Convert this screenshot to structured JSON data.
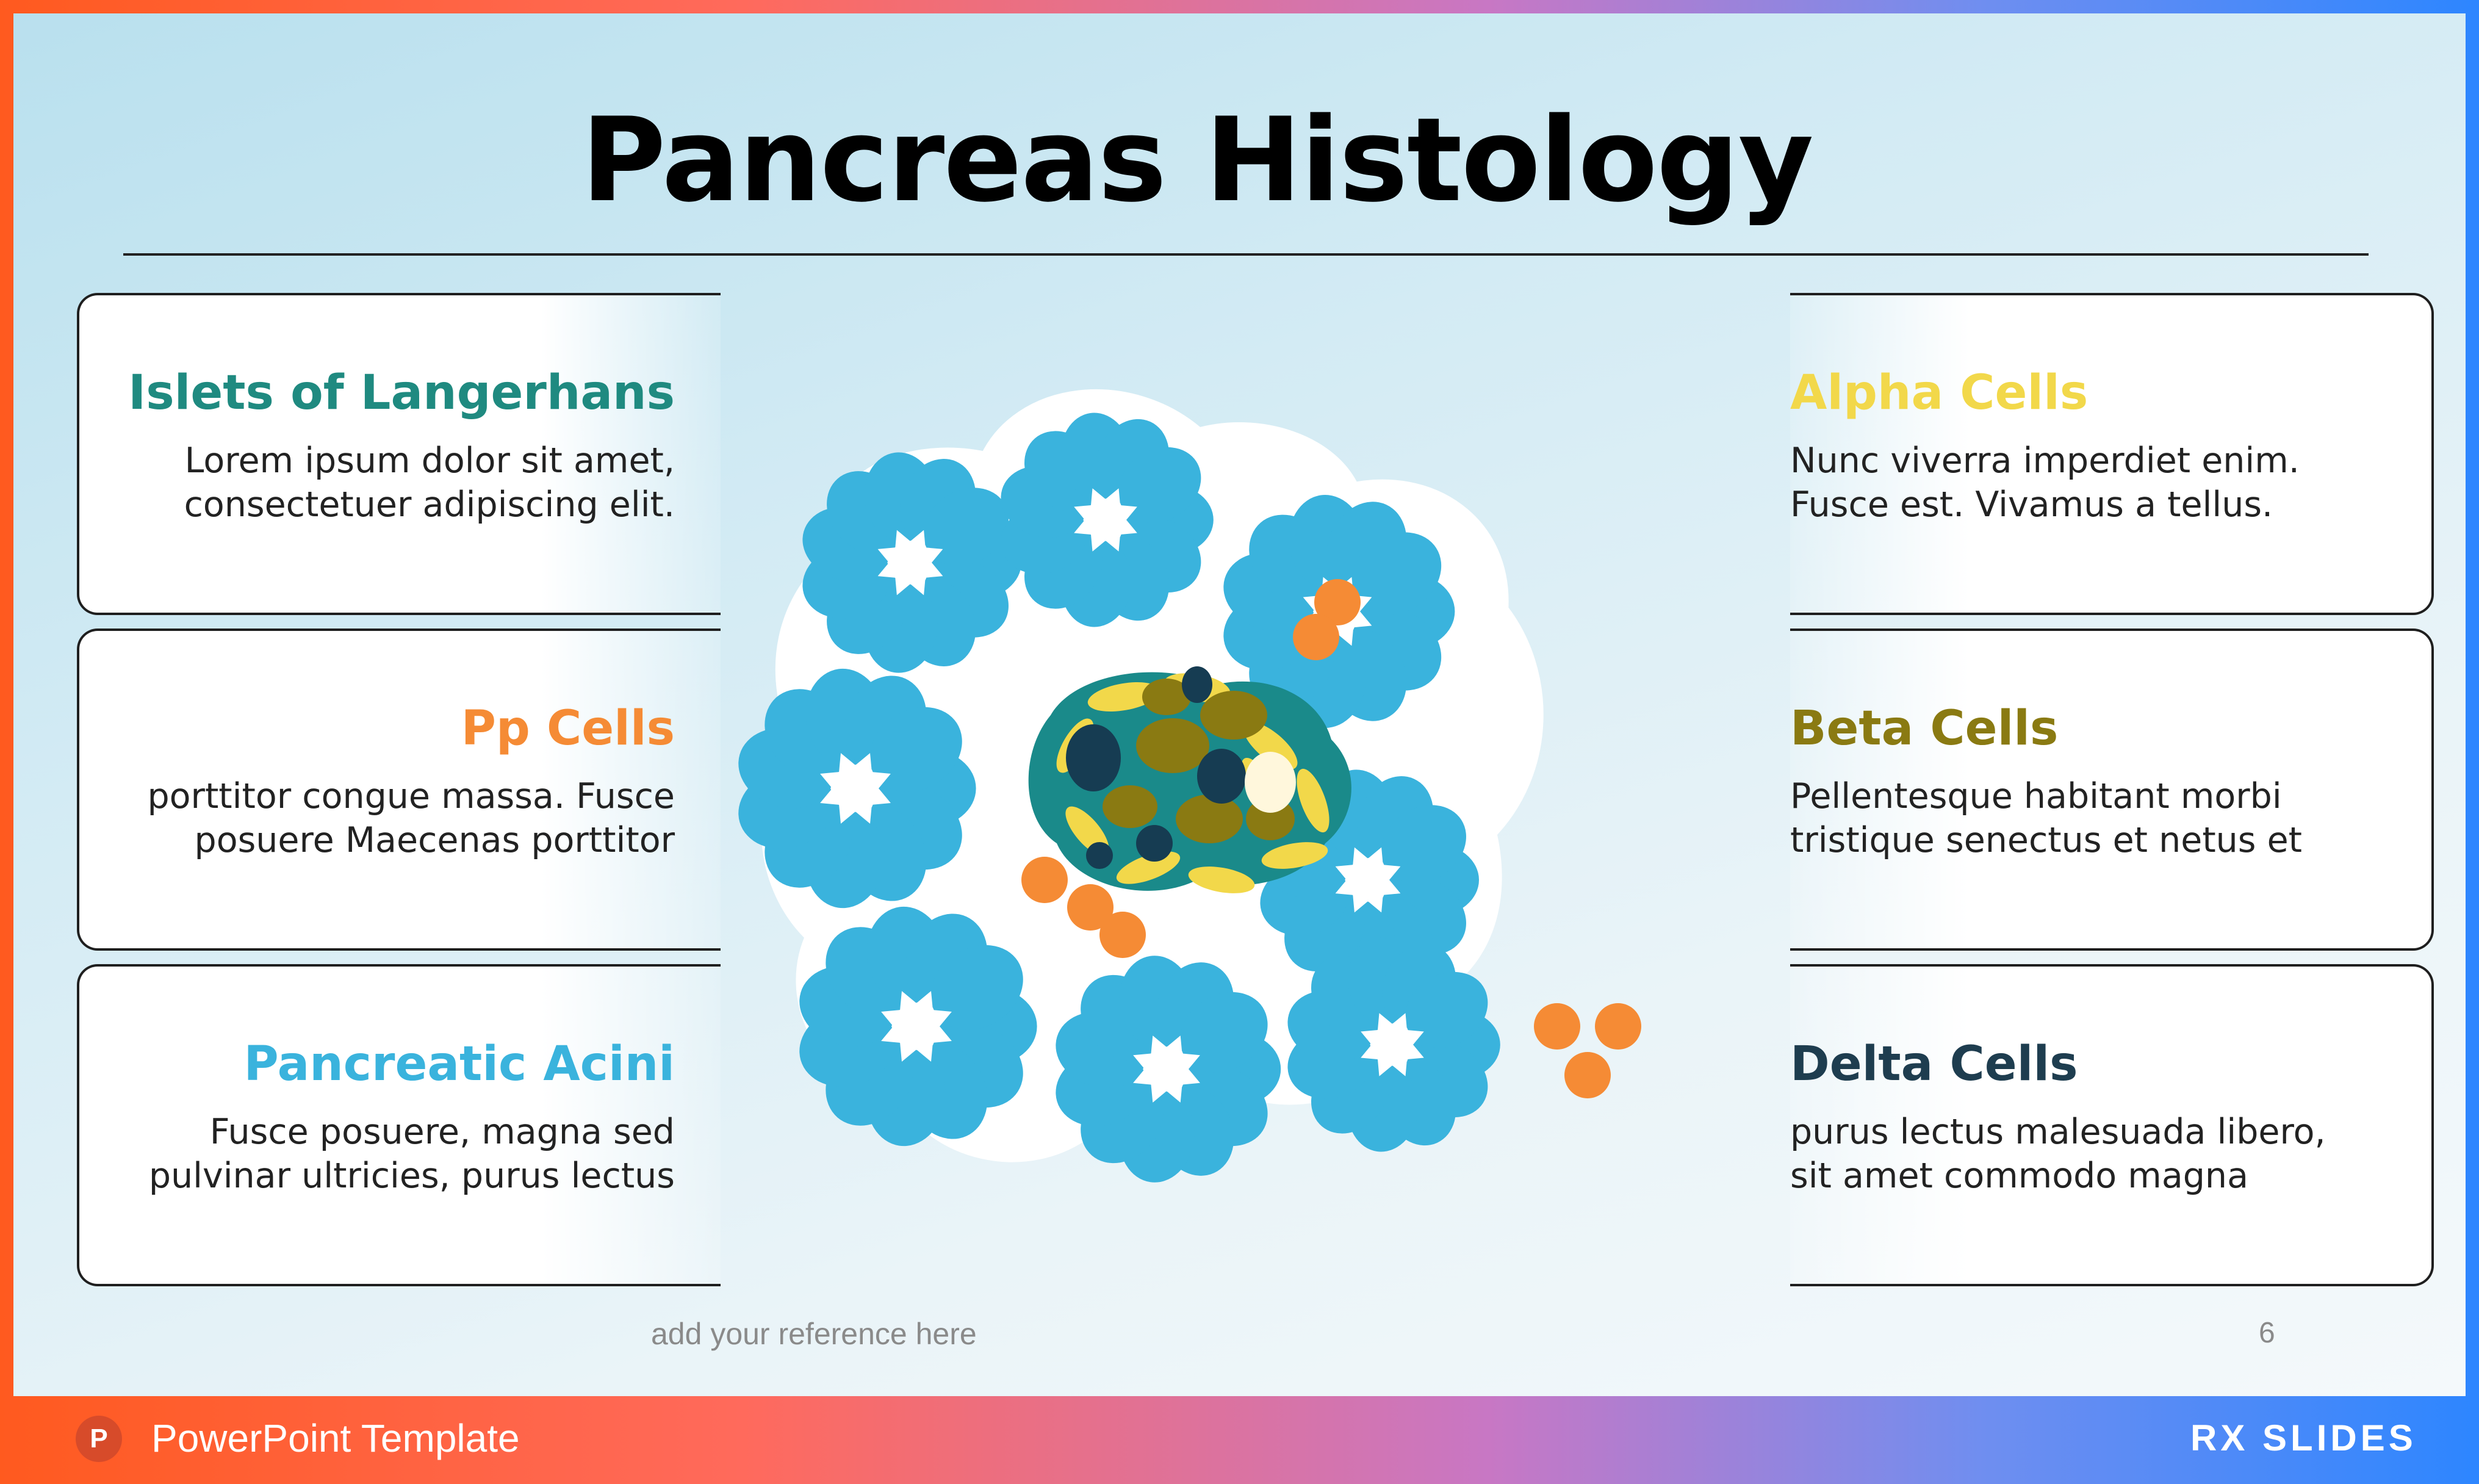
{
  "title": "Pancreas Histology",
  "cards": {
    "left": [
      {
        "heading": "Islets of Langerhans",
        "lines": [
          "Lorem ipsum dolor sit amet,",
          "consectetuer adipiscing elit."
        ],
        "color": "#1f8a80"
      },
      {
        "heading": "Pp Cells",
        "lines": [
          "porttitor congue massa. Fusce",
          "posuere Maecenas porttitor"
        ],
        "color": "#f58b35"
      },
      {
        "heading": "Pancreatic Acini",
        "lines": [
          "Fusce posuere, magna sed",
          "pulvinar ultricies, purus lectus"
        ],
        "color": "#3ab3dd"
      }
    ],
    "right": [
      {
        "heading": "Alpha Cells",
        "lines": [
          "Nunc viverra imperdiet enim.",
          "Fusce est. Vivamus a tellus."
        ],
        "color": "#f2d84a"
      },
      {
        "heading": "Beta Cells",
        "lines": [
          "Pellentesque habitant morbi",
          "tristique senectus et netus et"
        ],
        "color": "#8a7a12"
      },
      {
        "heading": "Delta Cells",
        "lines": [
          "purus lectus malesuada libero,",
          "sit amet commodo magna"
        ],
        "color": "#1e3d4f"
      }
    ]
  },
  "reference": "add your reference here",
  "page_number": "6",
  "footer": {
    "icon": "powerpoint-icon",
    "icon_letter": "P",
    "label": "PowerPoint Template",
    "logo": "RX SLIDES"
  },
  "colors": {
    "acini": "#3ab3dd",
    "islet": "#1a8a8a",
    "alpha": "#f2d84a",
    "beta": "#8a7a12",
    "delta": "#163c52",
    "pp": "#f58b35"
  }
}
